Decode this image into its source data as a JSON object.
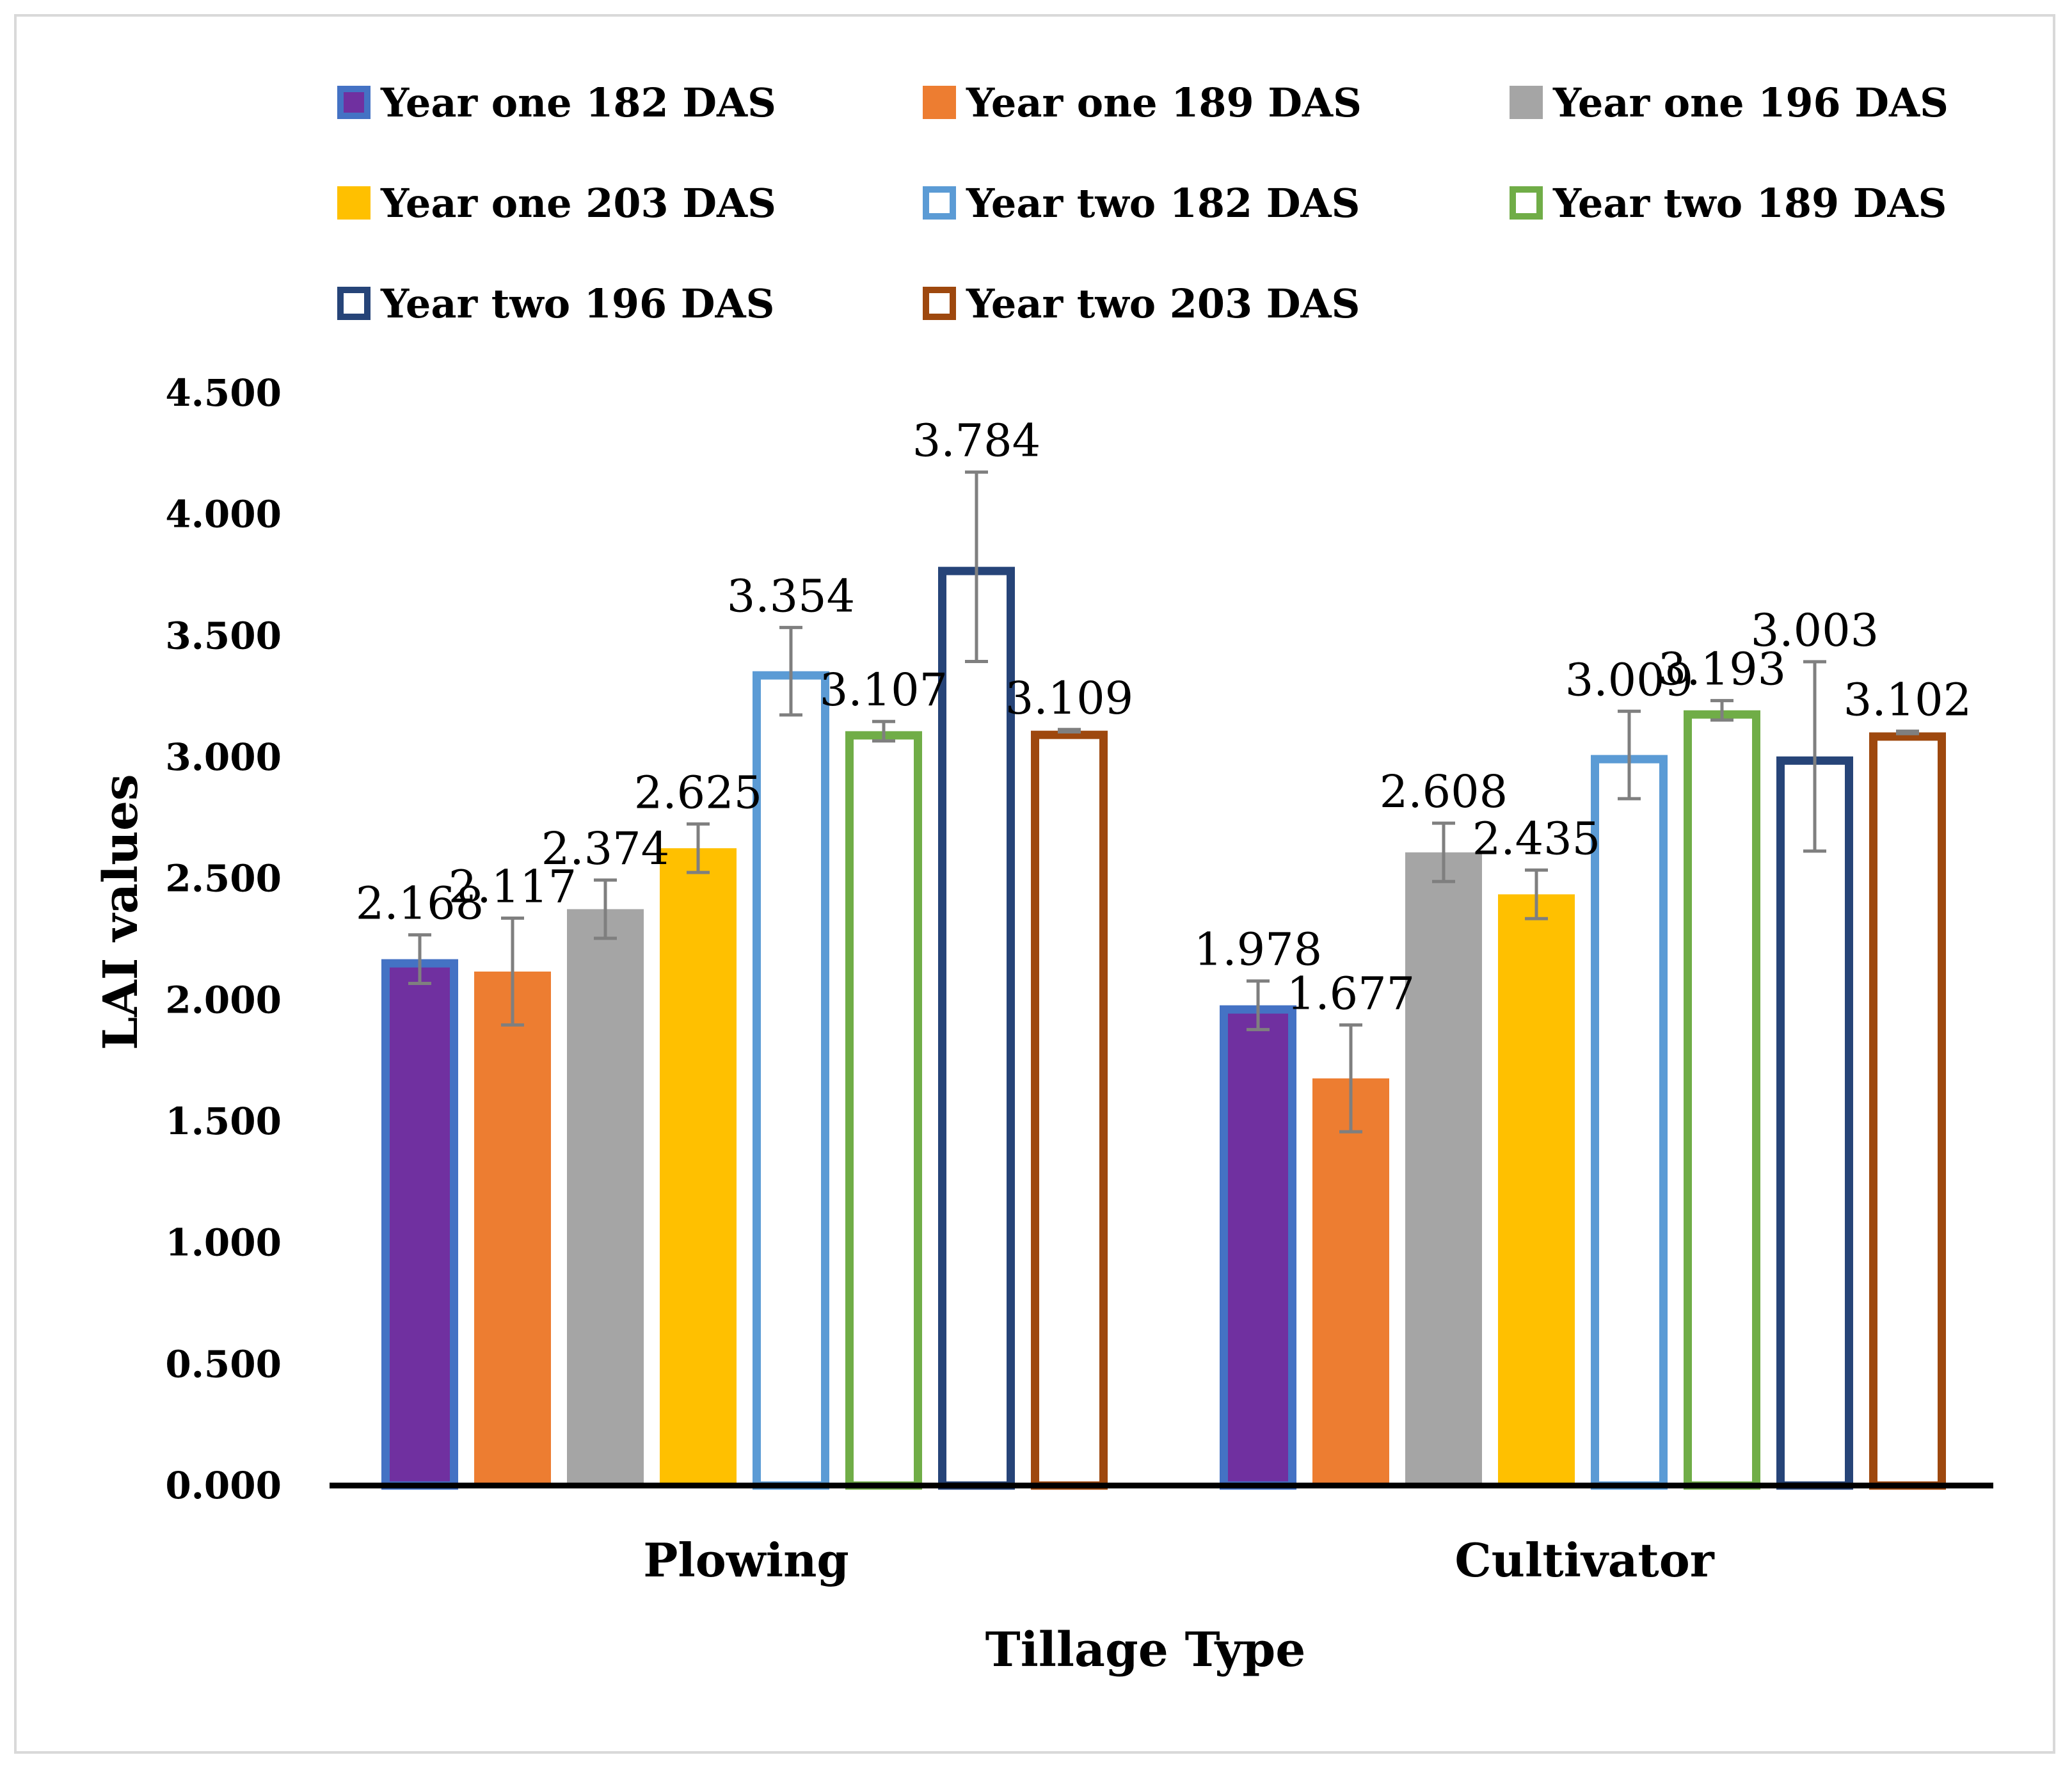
{
  "chart_data": {
    "type": "bar",
    "title": "",
    "xlabel": "Tillage Type",
    "ylabel": "LAI values",
    "categories": [
      "Plowing",
      "Cultivator"
    ],
    "ylim": [
      0,
      4.5
    ],
    "yticks": [
      "0.000",
      "0.500",
      "1.000",
      "1.500",
      "2.000",
      "2.500",
      "3.000",
      "3.500",
      "4.000",
      "4.500"
    ],
    "legend_position": "top",
    "series": [
      {
        "name": "Year one 182 DAS",
        "style": "filled-outlined",
        "fill": "#7030a0",
        "stroke": "#4472c4",
        "values": [
          2.168,
          1.978
        ],
        "labels": [
          "2.168",
          "1.978"
        ],
        "errors": [
          0.1,
          0.1
        ]
      },
      {
        "name": "Year one 189 DAS",
        "style": "filled",
        "fill": "#ed7d31",
        "stroke": "#ed7d31",
        "values": [
          2.117,
          1.677
        ],
        "labels": [
          "2.117",
          "1.677"
        ],
        "errors": [
          0.22,
          0.22
        ]
      },
      {
        "name": "Year one 196 DAS",
        "style": "filled",
        "fill": "#a5a5a5",
        "stroke": "#a5a5a5",
        "values": [
          2.374,
          2.608
        ],
        "labels": [
          "2.374",
          "2.608"
        ],
        "errors": [
          0.12,
          0.12
        ]
      },
      {
        "name": "Year one 203 DAS",
        "style": "filled",
        "fill": "#ffc000",
        "stroke": "#ffc000",
        "values": [
          2.625,
          2.435
        ],
        "labels": [
          "2.625",
          "2.435"
        ],
        "errors": [
          0.1,
          0.1
        ]
      },
      {
        "name": "Year  two 182 DAS",
        "style": "outline",
        "fill": "#ffffff",
        "stroke": "#5b9bd5",
        "values": [
          3.354,
          3.009
        ],
        "labels": [
          "3.354",
          "3.009"
        ],
        "errors": [
          0.18,
          0.18
        ]
      },
      {
        "name": "Year  two 189 DAS",
        "style": "outline",
        "fill": "#ffffff",
        "stroke": "#70ad47",
        "values": [
          3.107,
          3.193
        ],
        "labels": [
          "3.107",
          "3.193"
        ],
        "errors": [
          0.04,
          0.04
        ]
      },
      {
        "name": "Year  two 196 DAS",
        "style": "outline",
        "fill": "#ffffff",
        "stroke": "#264478",
        "values": [
          3.784,
          3.003
        ],
        "labels": [
          "3.784",
          "3.003"
        ],
        "errors": [
          0.39,
          0.39
        ]
      },
      {
        "name": "Year  two 203 DAS",
        "style": "outline",
        "fill": "#ffffff",
        "stroke": "#9e480e",
        "values": [
          3.109,
          3.102
        ],
        "labels": [
          "3.109",
          "3.102"
        ],
        "errors": [
          0.005,
          0.005
        ]
      }
    ]
  },
  "colors": {
    "axis": "#000000",
    "error_bar": "#7f7f7f",
    "frame": "#d9d9d9"
  }
}
